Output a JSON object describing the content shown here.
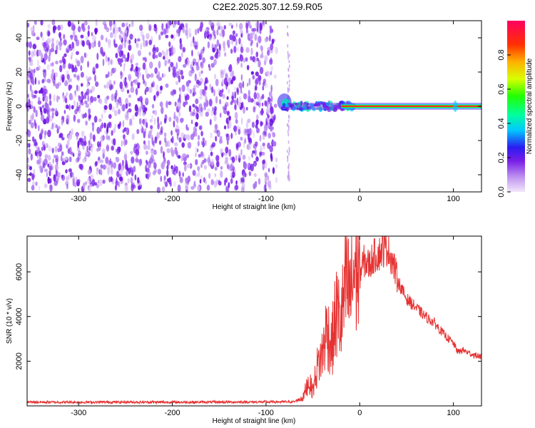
{
  "title": "C2E2.2025.307.12.59.R05",
  "colors": {
    "snr_line": "#e63232",
    "spectral_dots": "#7a1fe8",
    "ridge": "#ff2a2a"
  },
  "chart_data": [
    {
      "type": "heatmap",
      "xlabel": "Height of straight line (km)",
      "ylabel": "Frequency (Hz)",
      "xlim": [
        -355,
        130
      ],
      "ylim": [
        -50,
        50
      ],
      "x_ticks": [
        -300,
        -200,
        -100,
        0,
        100
      ],
      "x_tick_labels": [
        "-300",
        "-200",
        "-100",
        "0",
        "100"
      ],
      "y_ticks": [
        -40,
        -20,
        0,
        20,
        40
      ],
      "y_tick_labels": [
        "-40",
        "-20",
        "0",
        "20",
        "40"
      ],
      "noise_region_x": [
        -355,
        -75
      ],
      "signal_onset_x": -88,
      "ridge_frequency_hz": 0,
      "colorbar": {
        "label": "Normalized spectral amplitude",
        "ticks": [
          0.0,
          0.2,
          0.4,
          0.6,
          0.8
        ],
        "tick_labels": [
          "0.0",
          "0.2",
          "0.4",
          "0.6",
          "0.8"
        ],
        "range": [
          0,
          1
        ]
      }
    },
    {
      "type": "line",
      "xlabel": "Height of straight line (km)",
      "ylabel": "SNR (10 * v/v)",
      "xlim": [
        -355,
        130
      ],
      "ylim": [
        0,
        7600
      ],
      "x_ticks": [
        -300,
        -200,
        -100,
        0,
        100
      ],
      "x_tick_labels": [
        "-300",
        "-200",
        "-100",
        "0",
        "100"
      ],
      "y_ticks": [
        2000,
        4000,
        6000
      ],
      "y_tick_labels": [
        "2000",
        "4000",
        "6000"
      ],
      "series": [
        {
          "x": [
            -355,
            -300,
            -250,
            -200,
            -150,
            -100,
            -70,
            -60,
            -55,
            -50,
            -45,
            -40,
            -35,
            -30,
            -25,
            -20,
            -15,
            -10,
            -5,
            0,
            5,
            10,
            15,
            20,
            25,
            30,
            35,
            40,
            45,
            50,
            60,
            70,
            80,
            90,
            100,
            105,
            110,
            120,
            130
          ],
          "y": [
            170,
            165,
            170,
            165,
            170,
            175,
            180,
            400,
            1100,
            700,
            1800,
            2300,
            3500,
            2600,
            4200,
            3700,
            5300,
            5000,
            6300,
            5900,
            6500,
            6300,
            6700,
            6800,
            7000,
            7100,
            6500,
            5700,
            5200,
            4800,
            4400,
            4000,
            3700,
            3200,
            2800,
            2400,
            2500,
            2300,
            2200
          ]
        }
      ]
    }
  ]
}
